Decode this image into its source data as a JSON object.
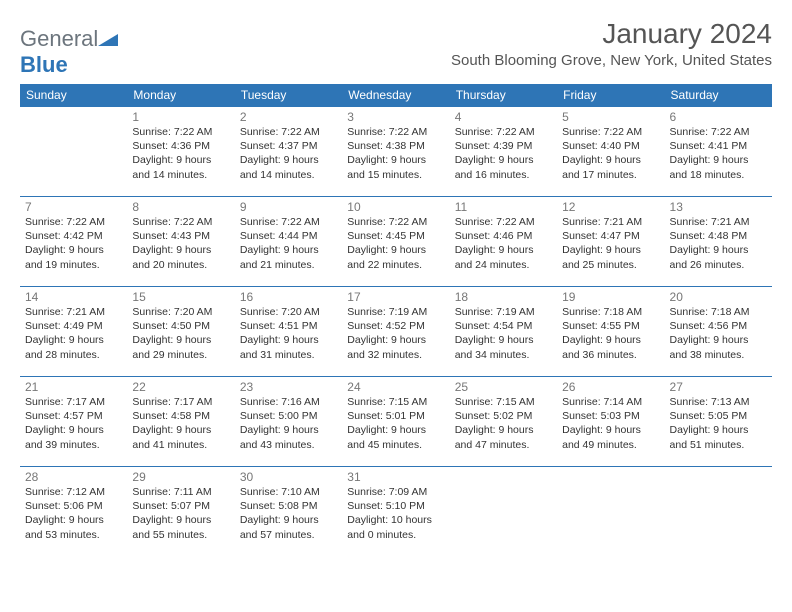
{
  "logo": {
    "word1": "General",
    "word2": "Blue"
  },
  "header": {
    "title": "January 2024",
    "location": "South Blooming Grove, New York, United States"
  },
  "colors": {
    "header_bg": "#2e75b6",
    "header_text": "#ffffff",
    "rule": "#2e75b6",
    "body_text": "#333333",
    "muted": "#777777"
  },
  "weekdays": [
    "Sunday",
    "Monday",
    "Tuesday",
    "Wednesday",
    "Thursday",
    "Friday",
    "Saturday"
  ],
  "grid": {
    "start_weekday": 1,
    "days_in_month": 31
  },
  "days": {
    "1": {
      "sunrise": "7:22 AM",
      "sunset": "4:36 PM",
      "daylight": "9 hours and 14 minutes."
    },
    "2": {
      "sunrise": "7:22 AM",
      "sunset": "4:37 PM",
      "daylight": "9 hours and 14 minutes."
    },
    "3": {
      "sunrise": "7:22 AM",
      "sunset": "4:38 PM",
      "daylight": "9 hours and 15 minutes."
    },
    "4": {
      "sunrise": "7:22 AM",
      "sunset": "4:39 PM",
      "daylight": "9 hours and 16 minutes."
    },
    "5": {
      "sunrise": "7:22 AM",
      "sunset": "4:40 PM",
      "daylight": "9 hours and 17 minutes."
    },
    "6": {
      "sunrise": "7:22 AM",
      "sunset": "4:41 PM",
      "daylight": "9 hours and 18 minutes."
    },
    "7": {
      "sunrise": "7:22 AM",
      "sunset": "4:42 PM",
      "daylight": "9 hours and 19 minutes."
    },
    "8": {
      "sunrise": "7:22 AM",
      "sunset": "4:43 PM",
      "daylight": "9 hours and 20 minutes."
    },
    "9": {
      "sunrise": "7:22 AM",
      "sunset": "4:44 PM",
      "daylight": "9 hours and 21 minutes."
    },
    "10": {
      "sunrise": "7:22 AM",
      "sunset": "4:45 PM",
      "daylight": "9 hours and 22 minutes."
    },
    "11": {
      "sunrise": "7:22 AM",
      "sunset": "4:46 PM",
      "daylight": "9 hours and 24 minutes."
    },
    "12": {
      "sunrise": "7:21 AM",
      "sunset": "4:47 PM",
      "daylight": "9 hours and 25 minutes."
    },
    "13": {
      "sunrise": "7:21 AM",
      "sunset": "4:48 PM",
      "daylight": "9 hours and 26 minutes."
    },
    "14": {
      "sunrise": "7:21 AM",
      "sunset": "4:49 PM",
      "daylight": "9 hours and 28 minutes."
    },
    "15": {
      "sunrise": "7:20 AM",
      "sunset": "4:50 PM",
      "daylight": "9 hours and 29 minutes."
    },
    "16": {
      "sunrise": "7:20 AM",
      "sunset": "4:51 PM",
      "daylight": "9 hours and 31 minutes."
    },
    "17": {
      "sunrise": "7:19 AM",
      "sunset": "4:52 PM",
      "daylight": "9 hours and 32 minutes."
    },
    "18": {
      "sunrise": "7:19 AM",
      "sunset": "4:54 PM",
      "daylight": "9 hours and 34 minutes."
    },
    "19": {
      "sunrise": "7:18 AM",
      "sunset": "4:55 PM",
      "daylight": "9 hours and 36 minutes."
    },
    "20": {
      "sunrise": "7:18 AM",
      "sunset": "4:56 PM",
      "daylight": "9 hours and 38 minutes."
    },
    "21": {
      "sunrise": "7:17 AM",
      "sunset": "4:57 PM",
      "daylight": "9 hours and 39 minutes."
    },
    "22": {
      "sunrise": "7:17 AM",
      "sunset": "4:58 PM",
      "daylight": "9 hours and 41 minutes."
    },
    "23": {
      "sunrise": "7:16 AM",
      "sunset": "5:00 PM",
      "daylight": "9 hours and 43 minutes."
    },
    "24": {
      "sunrise": "7:15 AM",
      "sunset": "5:01 PM",
      "daylight": "9 hours and 45 minutes."
    },
    "25": {
      "sunrise": "7:15 AM",
      "sunset": "5:02 PM",
      "daylight": "9 hours and 47 minutes."
    },
    "26": {
      "sunrise": "7:14 AM",
      "sunset": "5:03 PM",
      "daylight": "9 hours and 49 minutes."
    },
    "27": {
      "sunrise": "7:13 AM",
      "sunset": "5:05 PM",
      "daylight": "9 hours and 51 minutes."
    },
    "28": {
      "sunrise": "7:12 AM",
      "sunset": "5:06 PM",
      "daylight": "9 hours and 53 minutes."
    },
    "29": {
      "sunrise": "7:11 AM",
      "sunset": "5:07 PM",
      "daylight": "9 hours and 55 minutes."
    },
    "30": {
      "sunrise": "7:10 AM",
      "sunset": "5:08 PM",
      "daylight": "9 hours and 57 minutes."
    },
    "31": {
      "sunrise": "7:09 AM",
      "sunset": "5:10 PM",
      "daylight": "10 hours and 0 minutes."
    }
  },
  "labels": {
    "sunrise": "Sunrise:",
    "sunset": "Sunset:",
    "daylight": "Daylight:"
  }
}
